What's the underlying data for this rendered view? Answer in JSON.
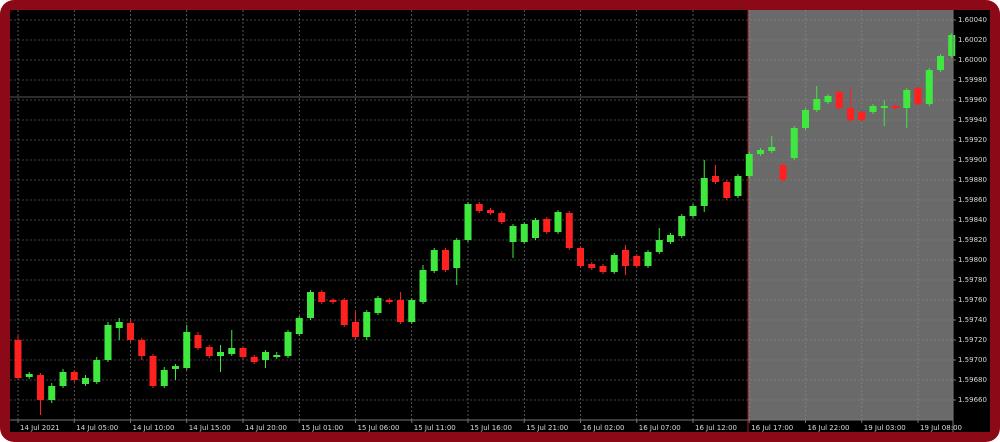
{
  "chart_data": {
    "type": "candlestick",
    "up_color": "#3ee83e",
    "down_color": "#ff2020",
    "grid": true,
    "ylim": [
      1.5964,
      1.6005
    ],
    "yticks": [
      {
        "value": 1.6004,
        "label": "1.60040"
      },
      {
        "value": 1.6002,
        "label": "1.60020"
      },
      {
        "value": 1.6,
        "label": "1.60000"
      },
      {
        "value": 1.5998,
        "label": "1.59980"
      },
      {
        "value": 1.5996,
        "label": "1.59960"
      },
      {
        "value": 1.5994,
        "label": "1.59940"
      },
      {
        "value": 1.5992,
        "label": "1.59920"
      },
      {
        "value": 1.599,
        "label": "1.59900"
      },
      {
        "value": 1.5988,
        "label": "1.59880"
      },
      {
        "value": 1.5986,
        "label": "1.59860"
      },
      {
        "value": 1.5984,
        "label": "1.59840"
      },
      {
        "value": 1.5982,
        "label": "1.59820"
      },
      {
        "value": 1.598,
        "label": "1.59800"
      },
      {
        "value": 1.5978,
        "label": "1.59780"
      },
      {
        "value": 1.5976,
        "label": "1.59760"
      },
      {
        "value": 1.5974,
        "label": "1.59740"
      },
      {
        "value": 1.5972,
        "label": "1.59720"
      },
      {
        "value": 1.597,
        "label": "1.59700"
      },
      {
        "value": 1.5968,
        "label": "1.59680"
      },
      {
        "value": 1.5966,
        "label": "1.59660"
      }
    ],
    "categories": [
      "14 Jul 2021",
      null,
      null,
      null,
      null,
      "14 Jul 05:00",
      null,
      null,
      null,
      null,
      "14 Jul 10:00",
      null,
      null,
      null,
      null,
      "14 Jul 15:00",
      null,
      null,
      null,
      null,
      "14 Jul 20:00",
      null,
      null,
      null,
      null,
      "15 Jul 01:00",
      null,
      null,
      null,
      null,
      "15 Jul 06:00",
      null,
      null,
      null,
      null,
      "15 Jul 11:00",
      null,
      null,
      null,
      null,
      "15 Jul 16:00",
      null,
      null,
      null,
      null,
      "15 Jul 21:00",
      null,
      null,
      null,
      null,
      "16 Jul 02:00",
      null,
      null,
      null,
      null,
      "16 Jul 07:00",
      null,
      null,
      null,
      null,
      "16 Jul 12:00",
      null,
      null,
      null,
      null,
      "16 Jul 17:00",
      null,
      null,
      null,
      null,
      "16 Jul 22:00",
      null,
      null,
      null,
      null,
      "19 Jul 03:00",
      null,
      null,
      null,
      null,
      "19 Jul 08:00",
      null,
      null,
      null
    ],
    "open": [
      1.5972,
      1.59683,
      1.59685,
      1.5966,
      1.59674,
      1.59688,
      1.59676,
      1.59678,
      1.597,
      1.59732,
      1.59737,
      1.5972,
      1.59704,
      1.59674,
      1.59691,
      1.59692,
      1.59725,
      1.59713,
      1.59704,
      1.59706,
      1.59712,
      1.59703,
      1.597,
      1.59703,
      1.59704,
      1.59726,
      1.59742,
      1.59768,
      1.5976,
      1.5976,
      1.59738,
      1.59723,
      1.59747,
      1.5976,
      1.5976,
      1.59738,
      1.59758,
      1.59789,
      1.5981,
      1.59792,
      1.5982,
      1.59856,
      1.5985,
      1.59847,
      1.59818,
      1.59818,
      1.59822,
      1.59841,
      1.59828,
      1.59847,
      1.59812,
      1.59796,
      1.59794,
      1.59788,
      1.5981,
      1.59804,
      1.59794,
      1.59808,
      1.59818,
      1.59824,
      1.59844,
      1.59854,
      1.59884,
      1.59878,
      1.59864,
      1.59884,
      1.59906,
      1.59909,
      1.59895,
      1.59902,
      1.59932,
      1.5995,
      1.59958,
      1.59968,
      1.59952,
      1.59948,
      1.59948,
      1.59952,
      1.59954,
      1.59952,
      1.59972,
      1.59956,
      1.5999,
      1.60004
    ],
    "high": [
      1.59725,
      1.59688,
      1.59687,
      1.59677,
      1.59691,
      1.5969,
      1.59685,
      1.59703,
      1.59738,
      1.59742,
      1.5974,
      1.59722,
      1.59706,
      1.59693,
      1.59696,
      1.59735,
      1.59728,
      1.59715,
      1.59715,
      1.5973,
      1.59714,
      1.59705,
      1.5971,
      1.59708,
      1.5973,
      1.59744,
      1.5977,
      1.5977,
      1.59762,
      1.59762,
      1.59748,
      1.5975,
      1.59764,
      1.59762,
      1.59768,
      1.59762,
      1.59795,
      1.59812,
      1.59812,
      1.59822,
      1.59858,
      1.59858,
      1.59852,
      1.59849,
      1.59836,
      1.59838,
      1.59842,
      1.59843,
      1.5985,
      1.59849,
      1.59814,
      1.59798,
      1.59796,
      1.59807,
      1.59815,
      1.59806,
      1.5981,
      1.59832,
      1.59827,
      1.59846,
      1.59856,
      1.599,
      1.59895,
      1.5988,
      1.59886,
      1.59908,
      1.59912,
      1.59924,
      1.59897,
      1.59934,
      1.59952,
      1.59974,
      1.59966,
      1.5997,
      1.59972,
      1.5995,
      1.59956,
      1.5996,
      1.59956,
      1.59972,
      1.59974,
      1.59992,
      1.60006,
      1.60027
    ],
    "low": [
      1.5968,
      1.59681,
      1.59645,
      1.59657,
      1.59672,
      1.59678,
      1.59674,
      1.59676,
      1.59698,
      1.5972,
      1.59718,
      1.597,
      1.59672,
      1.59672,
      1.5968,
      1.5969,
      1.5971,
      1.59702,
      1.59688,
      1.59704,
      1.59701,
      1.59696,
      1.59692,
      1.59701,
      1.59702,
      1.59724,
      1.5974,
      1.59756,
      1.59756,
      1.59733,
      1.59721,
      1.5972,
      1.59745,
      1.59756,
      1.59736,
      1.59736,
      1.59756,
      1.59787,
      1.59788,
      1.59775,
      1.59818,
      1.59847,
      1.59845,
      1.59836,
      1.59802,
      1.59816,
      1.5982,
      1.59826,
      1.59826,
      1.5981,
      1.59792,
      1.5979,
      1.59786,
      1.59786,
      1.59785,
      1.59792,
      1.59792,
      1.59806,
      1.59816,
      1.59822,
      1.59842,
      1.59848,
      1.59876,
      1.5986,
      1.59862,
      1.59882,
      1.59904,
      1.59907,
      1.59878,
      1.599,
      1.5993,
      1.59948,
      1.59956,
      1.5995,
      1.59938,
      1.59938,
      1.59946,
      1.59934,
      1.5995,
      1.59932,
      1.59954,
      1.59954,
      1.59988,
      1.60002
    ],
    "close": [
      1.59682,
      1.59686,
      1.5966,
      1.59674,
      1.59688,
      1.5968,
      1.59682,
      1.597,
      1.59735,
      1.59738,
      1.5972,
      1.59704,
      1.59674,
      1.5969,
      1.59694,
      1.59728,
      1.59712,
      1.59704,
      1.59708,
      1.59712,
      1.59703,
      1.59698,
      1.59708,
      1.59705,
      1.59728,
      1.59742,
      1.59768,
      1.59758,
      1.59758,
      1.59735,
      1.59723,
      1.59748,
      1.59762,
      1.59758,
      1.59738,
      1.5976,
      1.5979,
      1.5981,
      1.5979,
      1.5982,
      1.59856,
      1.59849,
      1.59847,
      1.59838,
      1.59834,
      1.59836,
      1.5984,
      1.59828,
      1.59848,
      1.59812,
      1.59794,
      1.59792,
      1.59788,
      1.59805,
      1.59794,
      1.59794,
      1.59808,
      1.5982,
      1.59825,
      1.59844,
      1.59854,
      1.59882,
      1.59878,
      1.59862,
      1.59884,
      1.59906,
      1.5991,
      1.59913,
      1.5988,
      1.59932,
      1.5995,
      1.59961,
      1.59964,
      1.59952,
      1.5994,
      1.5994,
      1.59954,
      1.59954,
      1.59952,
      1.5997,
      1.59956,
      1.5999,
      1.60004,
      1.60025
    ]
  }
}
